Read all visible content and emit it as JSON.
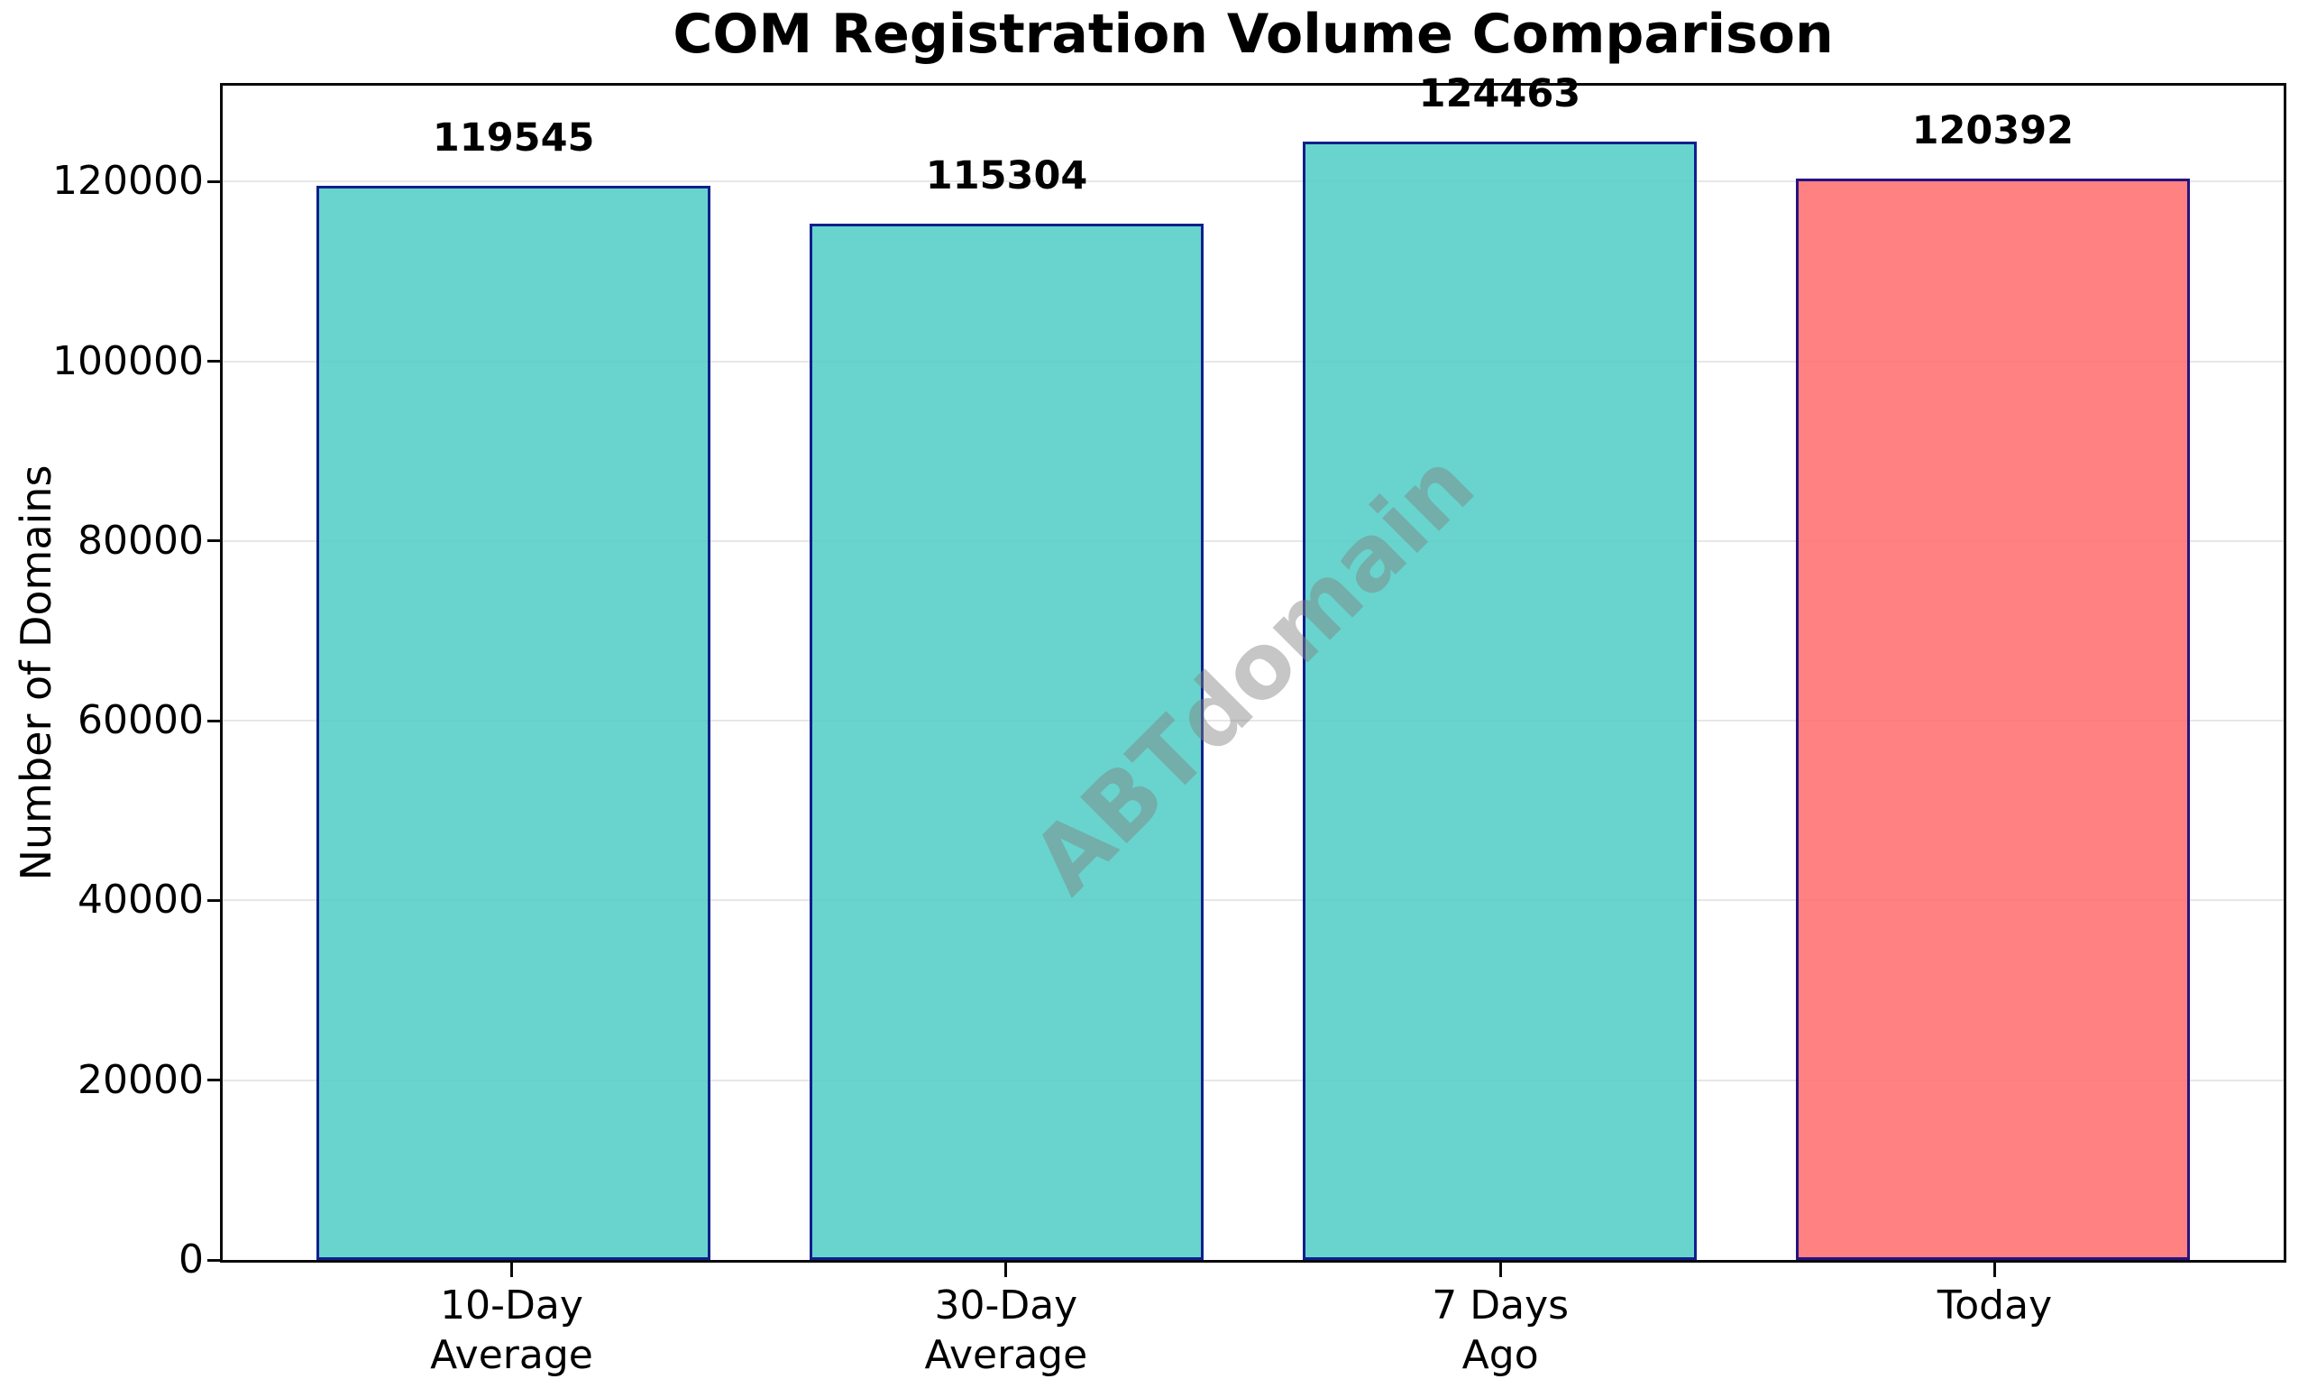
{
  "chart_data": {
    "type": "bar",
    "title": "COM Registration Volume Comparison",
    "ylabel": "Number of Domains",
    "xlabel": "",
    "watermark": "ABTdomain",
    "categories": [
      [
        "10-Day",
        "Average"
      ],
      [
        "30-Day",
        "Average"
      ],
      [
        "7 Days",
        "Ago"
      ],
      [
        "Today"
      ]
    ],
    "values": [
      119545,
      115304,
      124463,
      120392
    ],
    "bar_value_labels": [
      "119545",
      "115304",
      "124463",
      "120392"
    ],
    "bar_fill_colors": [
      "rgba(78,205,196,0.85)",
      "rgba(78,205,196,0.85)",
      "rgba(78,205,196,0.85)",
      "rgba(255,107,107,0.85)"
    ],
    "bar_base_colors_hex": [
      "#4ECDC4",
      "#4ECDC4",
      "#4ECDC4",
      "#FF6B6B"
    ],
    "bar_edge_color": "rgba(0,0,128,0.85)",
    "bar_edge_color_hex": "#000080",
    "grid": true,
    "grid_color": "#e7e7e7",
    "legend_position": "none",
    "ylim": [
      0,
      130686
    ],
    "xlim": [
      -0.59,
      3.59
    ],
    "x_positions": [
      0,
      1,
      2,
      3
    ],
    "bar_width": 0.8,
    "ytick_values": [
      0,
      20000,
      40000,
      60000,
      80000,
      100000,
      120000
    ],
    "ytick_labels": [
      "0",
      "20000",
      "40000",
      "60000",
      "80000",
      "100000",
      "120000"
    ]
  }
}
